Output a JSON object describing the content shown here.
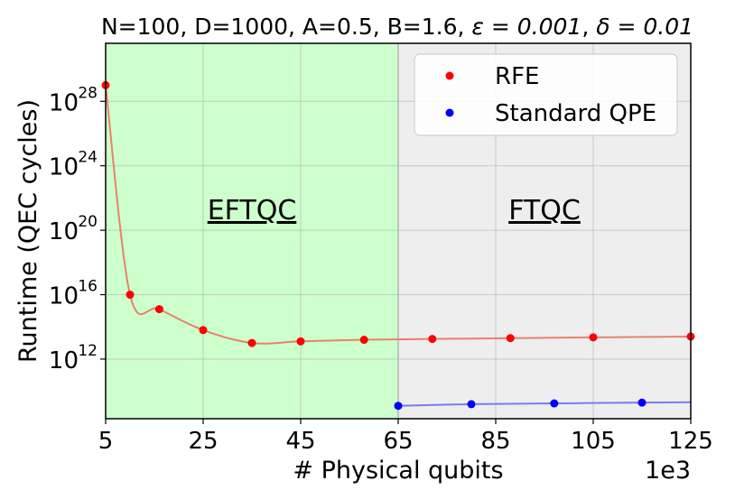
{
  "chart_data": {
    "type": "line",
    "title_prefix": "N=100, D=1000, A=0.5, B=1.6, ",
    "title_eps": "ε = 0.001",
    "title_delta": "δ = 0.01",
    "xlabel": "# Physical qubits",
    "x_offset_label": "1e3",
    "ylabel": "Runtime (QEC cycles)",
    "yscale": "log",
    "xlim": [
      5,
      125
    ],
    "ylim_log10": [
      8.3,
      31.6
    ],
    "x_ticks": [
      5,
      25,
      45,
      65,
      85,
      105,
      125
    ],
    "x_tick_labels": [
      "5",
      "25",
      "45",
      "65",
      "85",
      "105",
      "125"
    ],
    "y_ticks_log10": [
      12,
      16,
      20,
      24,
      28
    ],
    "y_tick_base": "10",
    "y_tick_exps": [
      "12",
      "16",
      "20",
      "24",
      "28"
    ],
    "grid": true,
    "legend_position": "top-right",
    "regions": [
      {
        "label": "EFTQC",
        "x_start": 5,
        "x_end": 65,
        "color": "#ccffcc"
      },
      {
        "label": "FTQC",
        "x_start": 65,
        "x_end": 125,
        "color": "#eeeeee"
      }
    ],
    "series": [
      {
        "name": "RFE",
        "color": "#ff0000",
        "line_color": "#e8826b",
        "x": [
          5,
          10,
          16,
          25,
          35,
          45,
          58,
          72,
          88,
          105,
          125
        ],
        "log10_y": [
          29.0,
          16.0,
          15.1,
          13.8,
          13.0,
          13.1,
          13.2,
          13.25,
          13.3,
          13.35,
          13.4
        ]
      },
      {
        "name": "Standard QPE",
        "color": "#0000ff",
        "line_color": "#7b7bef",
        "x": [
          65,
          80,
          97,
          115
        ],
        "log10_y": [
          9.1,
          9.2,
          9.25,
          9.3
        ]
      }
    ]
  }
}
